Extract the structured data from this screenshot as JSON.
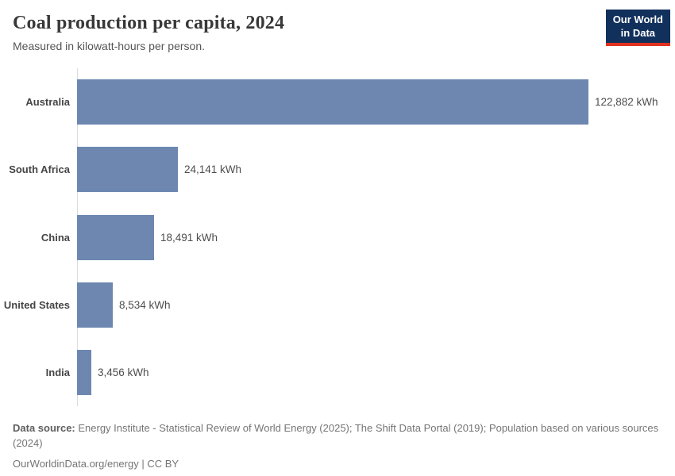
{
  "header": {
    "title": "Coal production per capita, 2024",
    "subtitle": "Measured in kilowatt-hours per person.",
    "logo": {
      "line1": "Our World",
      "line2": "in Data"
    }
  },
  "chart_data": {
    "type": "bar",
    "orientation": "horizontal",
    "title": "Coal production per capita, 2024",
    "subtitle": "Measured in kilowatt-hours per person.",
    "unit": "kWh",
    "categories": [
      "Australia",
      "South Africa",
      "China",
      "United States",
      "India"
    ],
    "values": [
      122882,
      24141,
      18491,
      8534,
      3456
    ],
    "value_labels": [
      "122,882 kWh",
      "24,141 kWh",
      "18,491 kWh",
      "8,534 kWh",
      "3,456 kWh"
    ],
    "xlim": [
      0,
      122882
    ],
    "grid": false,
    "legend": "none"
  },
  "footer": {
    "datasource_label": "Data source:",
    "datasource_text": " Energy Institute - Statistical Review of World Energy (2025); The Shift Data Portal (2019); Population based on various sources (2024)",
    "link_line": "OurWorldinData.org/energy | CC BY"
  },
  "colors": {
    "bar": "#6d87b1",
    "logo_background": "#12305c",
    "logo_red": "#e0321f",
    "axis_line": "#dcdcdc"
  }
}
